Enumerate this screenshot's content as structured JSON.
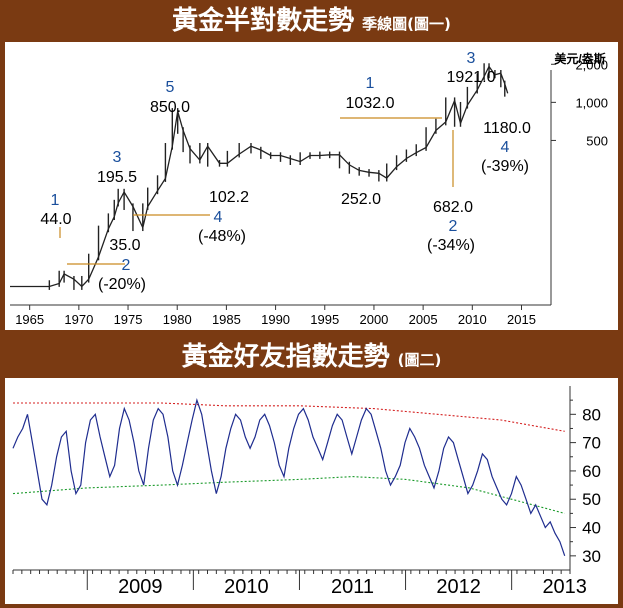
{
  "chart1": {
    "title": "黃金半對數走勢",
    "subtitle": "季線圖(圖一)",
    "unit_label": "美元/盎斯",
    "chart_data": {
      "type": "line",
      "yscale": "log",
      "xlim": [
        1963,
        2018
      ],
      "ylim": [
        25,
        3000
      ],
      "x_ticks": [
        "1965",
        "1970",
        "1975",
        "1980",
        "1985",
        "1990",
        "1995",
        "2000",
        "2005",
        "2010",
        "2015"
      ],
      "y_ticks": [
        "2,000",
        "1,000",
        "500"
      ],
      "series": [
        {
          "x": [
            1967,
            1968,
            1968.5,
            1969.5,
            1970.3,
            1971,
            1972,
            1973,
            1973.6,
            1974,
            1974.6,
            1975.5,
            1976.5,
            1977,
            1978,
            1978.8,
            1979.5,
            1980.05,
            1980.6,
            1981.3,
            1982.3,
            1983.1,
            1984.3,
            1985.1,
            1986.3,
            1987.5,
            1988.5,
            1989.5,
            1990.5,
            1991.5,
            1992.5,
            1993.5,
            1994.5,
            1995.5,
            1996.5,
            1997.5,
            1998.5,
            1999.5,
            2000.5,
            2001.3,
            2002.3,
            2003.3,
            2004.3,
            2005.3,
            2006.3,
            2007.3,
            2008.2,
            2008.8,
            2009.5,
            2010.5,
            2011.2,
            2011.7,
            2012.3,
            2012.9,
            2013.3,
            2013.6
          ],
          "y": [
            35,
            37,
            44,
            40,
            35,
            40,
            60,
            100,
            125,
            160,
            195.5,
            150,
            102.2,
            150,
            200,
            250,
            450,
            850,
            600,
            430,
            350,
            450,
            330,
            330,
            390,
            450,
            420,
            380,
            380,
            360,
            340,
            380,
            380,
            385,
            385,
            320,
            290,
            280,
            275,
            252,
            310,
            360,
            400,
            440,
            600,
            700,
            1032,
            682,
            950,
            1250,
            1600,
            1921,
            1650,
            1700,
            1400,
            1180
          ]
        }
      ],
      "annotations": [
        {
          "wave": "1",
          "value": "44.0"
        },
        {
          "wave": "2",
          "value": "35.0",
          "change": "(-20%)"
        },
        {
          "wave": "3",
          "value": "195.5"
        },
        {
          "wave": "4",
          "value": "102.2",
          "change": "(-48%)"
        },
        {
          "wave": "5",
          "value": "850.0"
        },
        {
          "value": "252.0"
        },
        {
          "wave": "1",
          "value": "1032.0"
        },
        {
          "wave": "2",
          "value": "682.0",
          "change": "(-34%)"
        },
        {
          "wave": "3",
          "value": "1921.0"
        },
        {
          "wave": "4",
          "value": "1180.0",
          "change": "(-39%)"
        }
      ]
    }
  },
  "chart2": {
    "title": "黃金好友指數走勢",
    "subtitle": "(圖二)",
    "chart_data": {
      "type": "line",
      "xlim": [
        2008.3,
        2013.55
      ],
      "ylim": [
        25,
        90
      ],
      "x_ticks": [
        "2009",
        "2010",
        "2011",
        "2012",
        "2013"
      ],
      "y_ticks": [
        "80",
        "70",
        "60",
        "50",
        "40",
        "30"
      ],
      "series": [
        {
          "color": "#1f2d8f",
          "x_start": 2008.3,
          "x_end": 2013.5,
          "values": [
            68,
            72,
            75,
            80,
            70,
            60,
            50,
            48,
            55,
            65,
            72,
            74,
            60,
            52,
            55,
            70,
            78,
            80,
            72,
            65,
            58,
            62,
            75,
            82,
            78,
            70,
            60,
            55,
            68,
            78,
            82,
            80,
            72,
            60,
            55,
            62,
            70,
            78,
            85,
            80,
            70,
            60,
            52,
            58,
            68,
            75,
            80,
            78,
            72,
            68,
            72,
            78,
            80,
            76,
            70,
            62,
            58,
            68,
            75,
            80,
            82,
            78,
            72,
            68,
            64,
            70,
            76,
            80,
            78,
            72,
            66,
            72,
            78,
            82,
            80,
            74,
            68,
            60,
            55,
            58,
            62,
            70,
            75,
            72,
            68,
            62,
            58,
            54,
            60,
            68,
            72,
            70,
            64,
            58,
            52,
            55,
            60,
            66,
            64,
            58,
            54,
            50,
            48,
            52,
            58,
            55,
            50,
            45,
            48,
            44,
            40,
            42,
            38,
            35,
            30
          ]
        },
        {
          "color": "#d42020",
          "style": "dotted",
          "x": [
            2008.3,
            2009.0,
            2009.7,
            2010.3,
            2011.0,
            2011.7,
            2012.3,
            2012.9,
            2013.5
          ],
          "y": [
            84,
            84,
            84,
            83,
            83,
            82,
            80,
            78,
            74
          ]
        },
        {
          "color": "#1a9a2a",
          "style": "dotted",
          "x": [
            2008.3,
            2009.0,
            2009.7,
            2010.3,
            2011.0,
            2011.5,
            2012.0,
            2012.6,
            2013.2,
            2013.5
          ],
          "y": [
            52,
            54,
            55,
            56,
            57,
            58,
            57,
            54,
            48,
            45
          ]
        }
      ]
    }
  }
}
